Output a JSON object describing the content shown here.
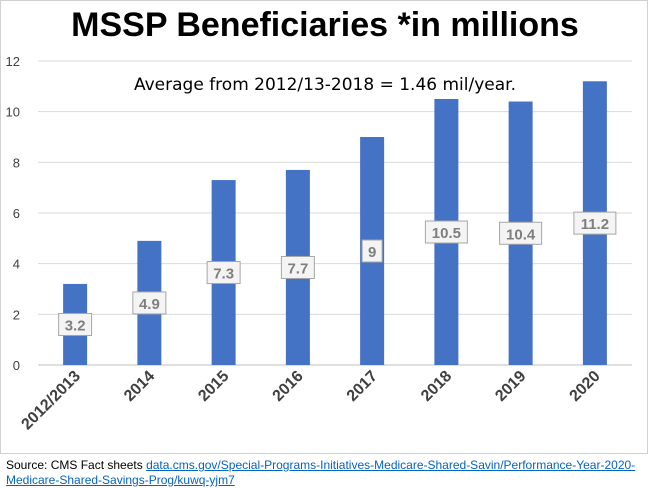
{
  "chart_data": {
    "type": "bar",
    "title": "MSSP Beneficiaries *in millions",
    "annotation": "Average from 2012/13-2018 = 1.46 mil/year.",
    "categories": [
      "2012/2013",
      "2014",
      "2015",
      "2016",
      "2017",
      "2018",
      "2019",
      "2020"
    ],
    "values": [
      3.2,
      4.9,
      7.3,
      7.7,
      9,
      10.5,
      10.4,
      11.2
    ],
    "data_labels": [
      "3.2",
      "4.9",
      "7.3",
      "7.7",
      "9",
      "10.5",
      "10.4",
      "11.2"
    ],
    "ylim": [
      0,
      12
    ],
    "yticks": [
      "0",
      "2",
      "4",
      "6",
      "8",
      "10",
      "12"
    ],
    "xlabel": "",
    "ylabel": "",
    "grid": true,
    "bar_color": "#4472c4"
  },
  "source": {
    "prefix": "Source: CMS Fact sheets ",
    "link_text": "data.cms.gov/Special-Programs-Initiatives-Medicare-Shared-Savin/Performance-Year-2020-Medicare-Shared-Savings-Prog/kuwq-yjm7"
  }
}
